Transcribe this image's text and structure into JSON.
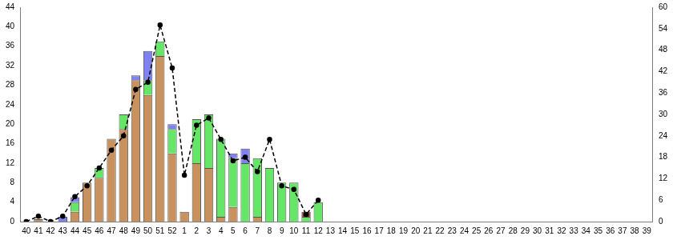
{
  "chart_data": {
    "type": "bar",
    "stacked": true,
    "grid": false,
    "categories": [
      "40",
      "41",
      "42",
      "43",
      "44",
      "45",
      "46",
      "47",
      "48",
      "49",
      "50",
      "51",
      "52",
      "1",
      "2",
      "3",
      "4",
      "5",
      "6",
      "7",
      "8",
      "9",
      "10",
      "11",
      "12",
      "13",
      "14",
      "15",
      "16",
      "17",
      "18",
      "19",
      "20",
      "21",
      "22",
      "23",
      "24",
      "25",
      "26",
      "27",
      "28",
      "29",
      "30",
      "31",
      "32",
      "33",
      "34",
      "35",
      "36",
      "37",
      "38",
      "39"
    ],
    "ylim": [
      0,
      44
    ],
    "yticks": [
      0,
      4,
      8,
      12,
      16,
      20,
      24,
      28,
      32,
      36,
      40,
      44
    ],
    "y2lim": [
      0,
      60
    ],
    "y2ticks": [
      0,
      6,
      12,
      18,
      24,
      30,
      36,
      42,
      48,
      54,
      60
    ],
    "series": [
      {
        "type": "bar",
        "color": "#c8915e",
        "values": [
          0,
          0.5,
          0,
          0,
          2,
          8,
          9,
          17,
          19,
          29,
          26,
          34,
          14,
          2,
          12,
          11,
          1,
          3,
          0,
          1,
          0,
          0,
          0,
          0,
          0,
          0,
          0,
          0,
          0,
          0,
          0,
          0,
          0,
          0,
          0,
          0,
          0,
          0,
          0,
          0,
          0,
          0,
          0,
          0,
          0,
          0,
          0,
          0,
          0,
          0,
          0,
          0
        ]
      },
      {
        "type": "bar",
        "color": "#66e666",
        "values": [
          0,
          0,
          0,
          0,
          2,
          0,
          2,
          0,
          3,
          0,
          3,
          3,
          5,
          0,
          9,
          11,
          16,
          10,
          12,
          12,
          11,
          8,
          8,
          1,
          4,
          0,
          0,
          0,
          0,
          0,
          0,
          0,
          0,
          0,
          0,
          0,
          0,
          0,
          0,
          0,
          0,
          0,
          0,
          0,
          0,
          0,
          0,
          0,
          0,
          0,
          0,
          0
        ]
      },
      {
        "type": "bar",
        "color": "#8080f0",
        "values": [
          0,
          0,
          0,
          1,
          1,
          0,
          0,
          0,
          0,
          1,
          6,
          0,
          1,
          0,
          0,
          0,
          0,
          1,
          3,
          0,
          0,
          0,
          0,
          0,
          0,
          0,
          0,
          0,
          0,
          0,
          0,
          0,
          0,
          0,
          0,
          0,
          0,
          0,
          0,
          0,
          0,
          0,
          0,
          0,
          0,
          0,
          0,
          0,
          0,
          0,
          0,
          0
        ]
      },
      {
        "type": "bar",
        "color": "#a0302a",
        "values": [
          0,
          0,
          0,
          0,
          0,
          0,
          0,
          0,
          0,
          0,
          0,
          0,
          0,
          0,
          0,
          0,
          0,
          0,
          0,
          0,
          0,
          0,
          0,
          1,
          0,
          0,
          0,
          0,
          0,
          0,
          0,
          0,
          0,
          0,
          0,
          0,
          0,
          0,
          0,
          0,
          0,
          0,
          0,
          0,
          0,
          0,
          0,
          0,
          0,
          0,
          0,
          0
        ]
      },
      {
        "type": "line",
        "axis": "y2",
        "color": "#000000",
        "line_style": "dashed",
        "marker": "circle",
        "values": [
          0,
          1.5,
          0,
          1.5,
          7,
          10,
          15,
          20,
          24,
          37,
          39,
          55,
          43,
          13,
          27,
          29,
          23,
          17,
          18,
          14,
          23,
          10,
          9,
          2,
          6,
          null,
          null,
          null,
          null,
          null,
          null,
          null,
          null,
          null,
          null,
          null,
          null,
          null,
          null,
          null,
          null,
          null,
          null,
          null,
          null,
          null,
          null,
          null,
          null,
          null,
          null,
          null
        ]
      }
    ]
  }
}
